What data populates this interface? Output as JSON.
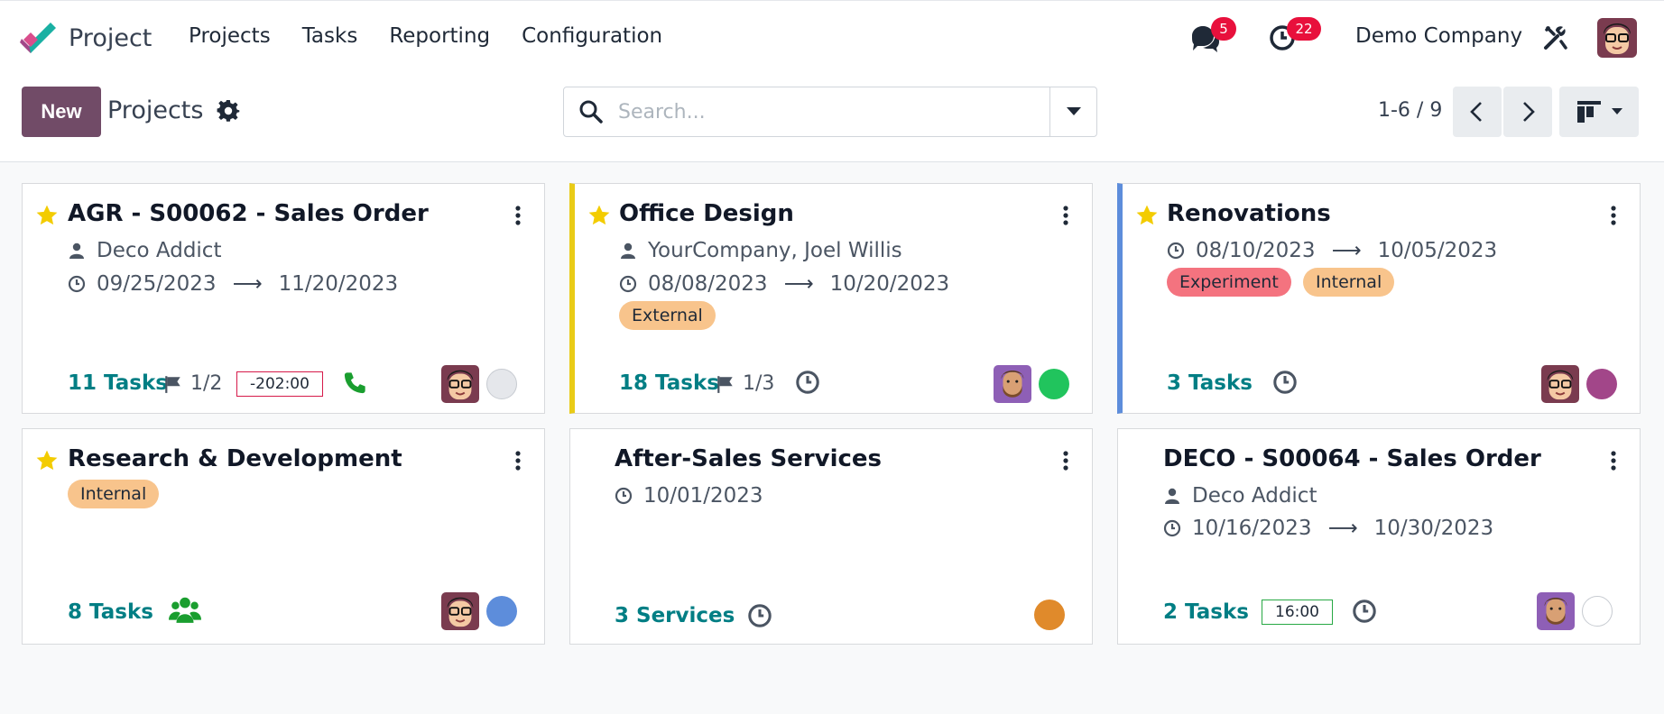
{
  "nav": {
    "app_name": "Project",
    "menu": [
      "Projects",
      "Tasks",
      "Reporting",
      "Configuration"
    ],
    "messages_count": "5",
    "activities_count": "22",
    "company": "Demo Company"
  },
  "control_panel": {
    "new_label": "New",
    "title": "Projects",
    "search_placeholder": "Search...",
    "pager": "1-6 / 9"
  },
  "colors": {
    "brand": "#714b67",
    "link": "#017e84",
    "badge": "#e8103c",
    "star": "#f3cc00"
  },
  "cards": [
    {
      "title": "AGR - S00062 - Sales Order",
      "favorite": true,
      "partner": "Deco Addict",
      "date_start": "09/25/2023",
      "date_end": "11/20/2023",
      "tasks": "11 Tasks",
      "milestones": "1/2",
      "deadline": "-202:00",
      "activity": "phone-icon",
      "status_color": "#e5e7eb"
    },
    {
      "title": "Office Design",
      "favorite": true,
      "partner": "YourCompany, Joel Willis",
      "date_start": "08/08/2023",
      "date_end": "10/20/2023",
      "tags": [
        "External"
      ],
      "tasks": "18 Tasks",
      "milestones": "1/3",
      "activity": "clock-icon",
      "status_color": "#21c45d"
    },
    {
      "title": "Renovations",
      "favorite": true,
      "date_start": "08/10/2023",
      "date_end": "10/05/2023",
      "tags": [
        "Experiment",
        "Internal"
      ],
      "tasks": "3 Tasks",
      "activity": "clock-icon",
      "status_color": "#a24689"
    },
    {
      "title": "Research & Development",
      "favorite": true,
      "tags": [
        "Internal"
      ],
      "tasks": "8 Tasks",
      "activity": "users-icon",
      "status_color": "#5d8ddb"
    },
    {
      "title": "After-Sales Services",
      "favorite": false,
      "date_start": "10/01/2023",
      "tasks": "3 Services",
      "activity": "clock-icon",
      "status_color": "#e08a2b"
    },
    {
      "title": "DECO - S00064 - Sales Order",
      "favorite": false,
      "partner": "Deco Addict",
      "date_start": "10/16/2023",
      "date_end": "10/30/2023",
      "tasks": "2 Tasks",
      "deadline": "16:00",
      "activity": "clock-icon",
      "status_color": "#e5e7eb"
    }
  ],
  "arrow": "⟶"
}
